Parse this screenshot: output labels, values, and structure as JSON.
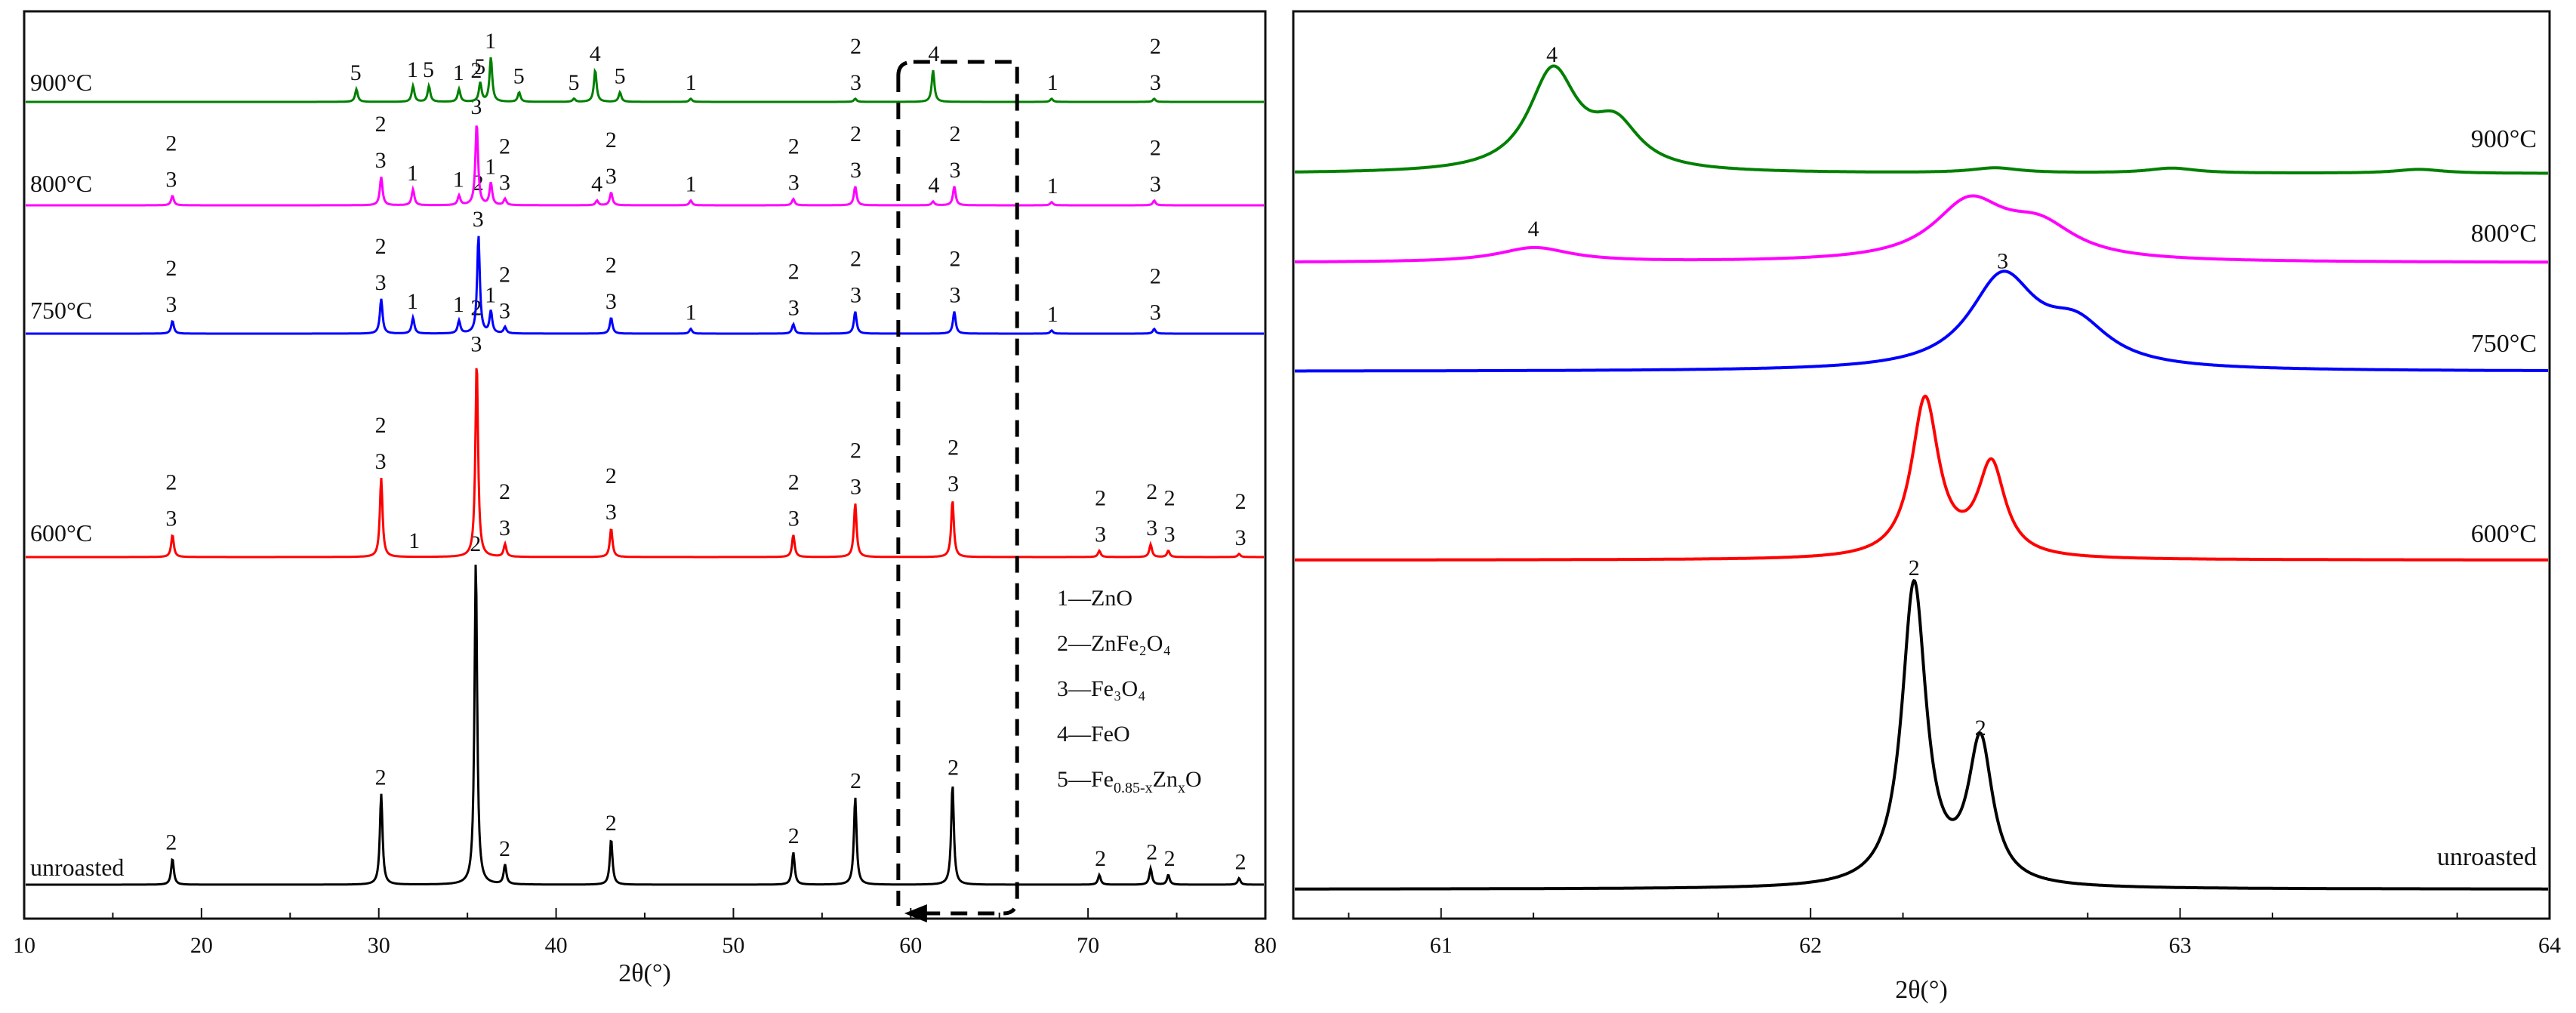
{
  "chart_data": [
    {
      "type": "line",
      "panel": "left",
      "title": "",
      "xlabel": "2θ(°)",
      "ylabel": "",
      "xlim": [
        10,
        80
      ],
      "xticks": [
        10,
        20,
        30,
        40,
        50,
        60,
        70,
        80
      ],
      "grid": false,
      "series": [
        {
          "name": "unroasted",
          "label": "unroasted",
          "color": "#000000",
          "peaks": [
            {
              "x": 18.3,
              "h": 8,
              "tags": [
                "2"
              ]
            },
            {
              "x": 30.1,
              "h": 28,
              "tags": [
                "2"
              ]
            },
            {
              "x": 35.45,
              "h": 100,
              "tags": [
                "2"
              ]
            },
            {
              "x": 37.1,
              "h": 6,
              "tags": [
                "2"
              ]
            },
            {
              "x": 43.1,
              "h": 14,
              "tags": [
                "2"
              ]
            },
            {
              "x": 53.4,
              "h": 10,
              "tags": [
                "2"
              ]
            },
            {
              "x": 56.9,
              "h": 27,
              "tags": [
                "2"
              ]
            },
            {
              "x": 62.4,
              "h": 31,
              "tags": [
                "2"
              ]
            },
            {
              "x": 70.7,
              "h": 3,
              "tags": [
                "2"
              ]
            },
            {
              "x": 73.6,
              "h": 5,
              "tags": [
                "2"
              ]
            },
            {
              "x": 74.6,
              "h": 3,
              "tags": [
                "2"
              ]
            },
            {
              "x": 78.6,
              "h": 2,
              "tags": [
                "2"
              ]
            }
          ]
        },
        {
          "name": "600°C",
          "label": "600°C",
          "color": "#ff0000",
          "peaks": [
            {
              "x": 18.3,
              "h": 7,
              "tags": [
                "2",
                "3"
              ]
            },
            {
              "x": 30.1,
              "h": 25,
              "tags": [
                "2",
                "3"
              ]
            },
            {
              "x": 32.0,
              "h": 0,
              "tags": [
                "1"
              ]
            },
            {
              "x": 35.5,
              "h": 62,
              "tags": [
                "2",
                "3"
              ]
            },
            {
              "x": 37.1,
              "h": 4,
              "tags": [
                "2",
                "3"
              ]
            },
            {
              "x": 43.1,
              "h": 9,
              "tags": [
                "2",
                "3"
              ]
            },
            {
              "x": 53.4,
              "h": 7,
              "tags": [
                "2",
                "3"
              ]
            },
            {
              "x": 56.9,
              "h": 17,
              "tags": [
                "2",
                "3"
              ]
            },
            {
              "x": 62.4,
              "h": 18,
              "tags": [
                "2",
                "3"
              ]
            },
            {
              "x": 70.7,
              "h": 2,
              "tags": [
                "2",
                "3"
              ]
            },
            {
              "x": 73.6,
              "h": 4,
              "tags": [
                "2",
                "3"
              ]
            },
            {
              "x": 74.6,
              "h": 2,
              "tags": [
                "2",
                "3"
              ]
            },
            {
              "x": 78.6,
              "h": 1,
              "tags": [
                "2",
                "3"
              ]
            }
          ]
        },
        {
          "name": "750°C",
          "label": "750°C",
          "color": "#0000ff",
          "peaks": [
            {
              "x": 18.3,
              "h": 4,
              "tags": [
                "2",
                "3"
              ]
            },
            {
              "x": 30.1,
              "h": 11,
              "tags": [
                "2",
                "3"
              ]
            },
            {
              "x": 31.9,
              "h": 5,
              "tags": [
                "1"
              ]
            },
            {
              "x": 34.5,
              "h": 4,
              "tags": [
                "1"
              ]
            },
            {
              "x": 35.6,
              "h": 31,
              "tags": [
                "2",
                "3"
              ]
            },
            {
              "x": 36.3,
              "h": 7,
              "tags": [
                "1"
              ]
            },
            {
              "x": 37.1,
              "h": 2,
              "tags": [
                "2",
                "3"
              ]
            },
            {
              "x": 43.1,
              "h": 5,
              "tags": [
                "2",
                "3"
              ]
            },
            {
              "x": 47.6,
              "h": 1.5,
              "tags": [
                "1"
              ]
            },
            {
              "x": 53.4,
              "h": 3,
              "tags": [
                "2",
                "3"
              ]
            },
            {
              "x": 56.9,
              "h": 7,
              "tags": [
                "2",
                "3"
              ]
            },
            {
              "x": 62.5,
              "h": 7,
              "tags": [
                "2",
                "3"
              ]
            },
            {
              "x": 68.0,
              "h": 1,
              "tags": [
                "1"
              ]
            },
            {
              "x": 73.8,
              "h": 1.5,
              "tags": [
                "2",
                "3"
              ]
            }
          ]
        },
        {
          "name": "800°C",
          "label": "800°C",
          "color": "#ff00ff",
          "peaks": [
            {
              "x": 18.3,
              "h": 3,
              "tags": [
                "2",
                "3"
              ]
            },
            {
              "x": 30.1,
              "h": 9,
              "tags": [
                "2",
                "3"
              ]
            },
            {
              "x": 31.9,
              "h": 5,
              "tags": [
                "1"
              ]
            },
            {
              "x": 34.5,
              "h": 3,
              "tags": [
                "1"
              ]
            },
            {
              "x": 35.5,
              "h": 26,
              "tags": [
                "2",
                "3"
              ]
            },
            {
              "x": 36.3,
              "h": 7,
              "tags": [
                "1"
              ]
            },
            {
              "x": 37.1,
              "h": 2,
              "tags": [
                "2",
                "3"
              ]
            },
            {
              "x": 42.3,
              "h": 1.5,
              "tags": [
                "4"
              ]
            },
            {
              "x": 43.1,
              "h": 4,
              "tags": [
                "2",
                "3"
              ]
            },
            {
              "x": 47.6,
              "h": 1.5,
              "tags": [
                "1"
              ]
            },
            {
              "x": 53.4,
              "h": 2,
              "tags": [
                "2",
                "3"
              ]
            },
            {
              "x": 56.9,
              "h": 6,
              "tags": [
                "2",
                "3"
              ]
            },
            {
              "x": 61.3,
              "h": 1.2,
              "tags": [
                "4"
              ]
            },
            {
              "x": 62.5,
              "h": 6,
              "tags": [
                "2",
                "3"
              ]
            },
            {
              "x": 68.0,
              "h": 1,
              "tags": [
                "1"
              ]
            },
            {
              "x": 73.8,
              "h": 1.5,
              "tags": [
                "2",
                "3"
              ]
            }
          ]
        },
        {
          "name": "900°C",
          "label": "900°C",
          "color": "#008000",
          "peaks": [
            {
              "x": 28.7,
              "h": 4,
              "tags": [
                "5"
              ]
            },
            {
              "x": 31.9,
              "h": 5,
              "tags": [
                "1"
              ]
            },
            {
              "x": 32.8,
              "h": 5,
              "tags": [
                "5"
              ]
            },
            {
              "x": 34.5,
              "h": 4,
              "tags": [
                "1"
              ]
            },
            {
              "x": 35.7,
              "h": 6,
              "tags": [
                "5"
              ]
            },
            {
              "x": 36.3,
              "h": 14,
              "tags": [
                "1"
              ]
            },
            {
              "x": 37.9,
              "h": 3,
              "tags": [
                "5"
              ]
            },
            {
              "x": 41.0,
              "h": 1,
              "tags": [
                "5"
              ]
            },
            {
              "x": 42.2,
              "h": 10,
              "tags": [
                "4"
              ]
            },
            {
              "x": 43.6,
              "h": 3,
              "tags": [
                "5"
              ]
            },
            {
              "x": 47.6,
              "h": 1,
              "tags": [
                "1"
              ]
            },
            {
              "x": 56.9,
              "h": 1,
              "tags": [
                "2",
                "3"
              ]
            },
            {
              "x": 61.3,
              "h": 10,
              "tags": [
                "4"
              ]
            },
            {
              "x": 68.0,
              "h": 1,
              "tags": [
                "1"
              ]
            },
            {
              "x": 73.8,
              "h": 1,
              "tags": [
                "2",
                "3"
              ]
            }
          ]
        }
      ],
      "legend": [
        "1—ZnO",
        "2—ZnFe₂O₄",
        "3—Fe₃O₄",
        "4—FeO",
        "5—Fe0.85-xZnxO"
      ],
      "legend_placement": "right-middle",
      "zoom_region": [
        59.3,
        66
      ]
    },
    {
      "type": "line",
      "panel": "right",
      "title": "",
      "xlabel": "2θ(°)",
      "ylabel": "",
      "xlim": [
        60.6,
        64
      ],
      "xticks": [
        61,
        62,
        63,
        64
      ],
      "grid": false,
      "series": [
        {
          "name": "unroasted",
          "label": "unroasted",
          "color": "#000000",
          "peaks": [
            {
              "x": 62.28,
              "h": 100,
              "tags": [
                "2"
              ]
            },
            {
              "x": 62.46,
              "h": 47,
              "tags": [
                "2"
              ]
            }
          ]
        },
        {
          "name": "600°C",
          "label": "600°C",
          "color": "#ff0000",
          "peaks": [
            {
              "x": 62.31,
              "h": 50,
              "tags": []
            },
            {
              "x": 62.49,
              "h": 29,
              "tags": []
            }
          ]
        },
        {
          "name": "750°C",
          "label": "750°C",
          "color": "#0000ff",
          "peaks": [
            {
              "x": 62.52,
              "h": 28,
              "tags": [
                "3"
              ]
            },
            {
              "x": 62.72,
              "h": 12,
              "tags": []
            }
          ]
        },
        {
          "name": "800°C",
          "label": "800°C",
          "color": "#ff00ff",
          "peaks": [
            {
              "x": 61.25,
              "h": 5,
              "tags": [
                "4"
              ]
            },
            {
              "x": 62.43,
              "h": 20,
              "tags": []
            },
            {
              "x": 62.62,
              "h": 11,
              "tags": []
            }
          ]
        },
        {
          "name": "900°C",
          "label": "900°C",
          "color": "#008000",
          "peaks": [
            {
              "x": 61.3,
              "h": 30,
              "tags": [
                "4"
              ]
            },
            {
              "x": 61.47,
              "h": 13,
              "tags": []
            },
            {
              "x": 62.5,
              "h": 1.5,
              "tags": []
            },
            {
              "x": 62.98,
              "h": 1.5,
              "tags": []
            },
            {
              "x": 63.65,
              "h": 1.2,
              "tags": []
            }
          ]
        }
      ]
    }
  ]
}
